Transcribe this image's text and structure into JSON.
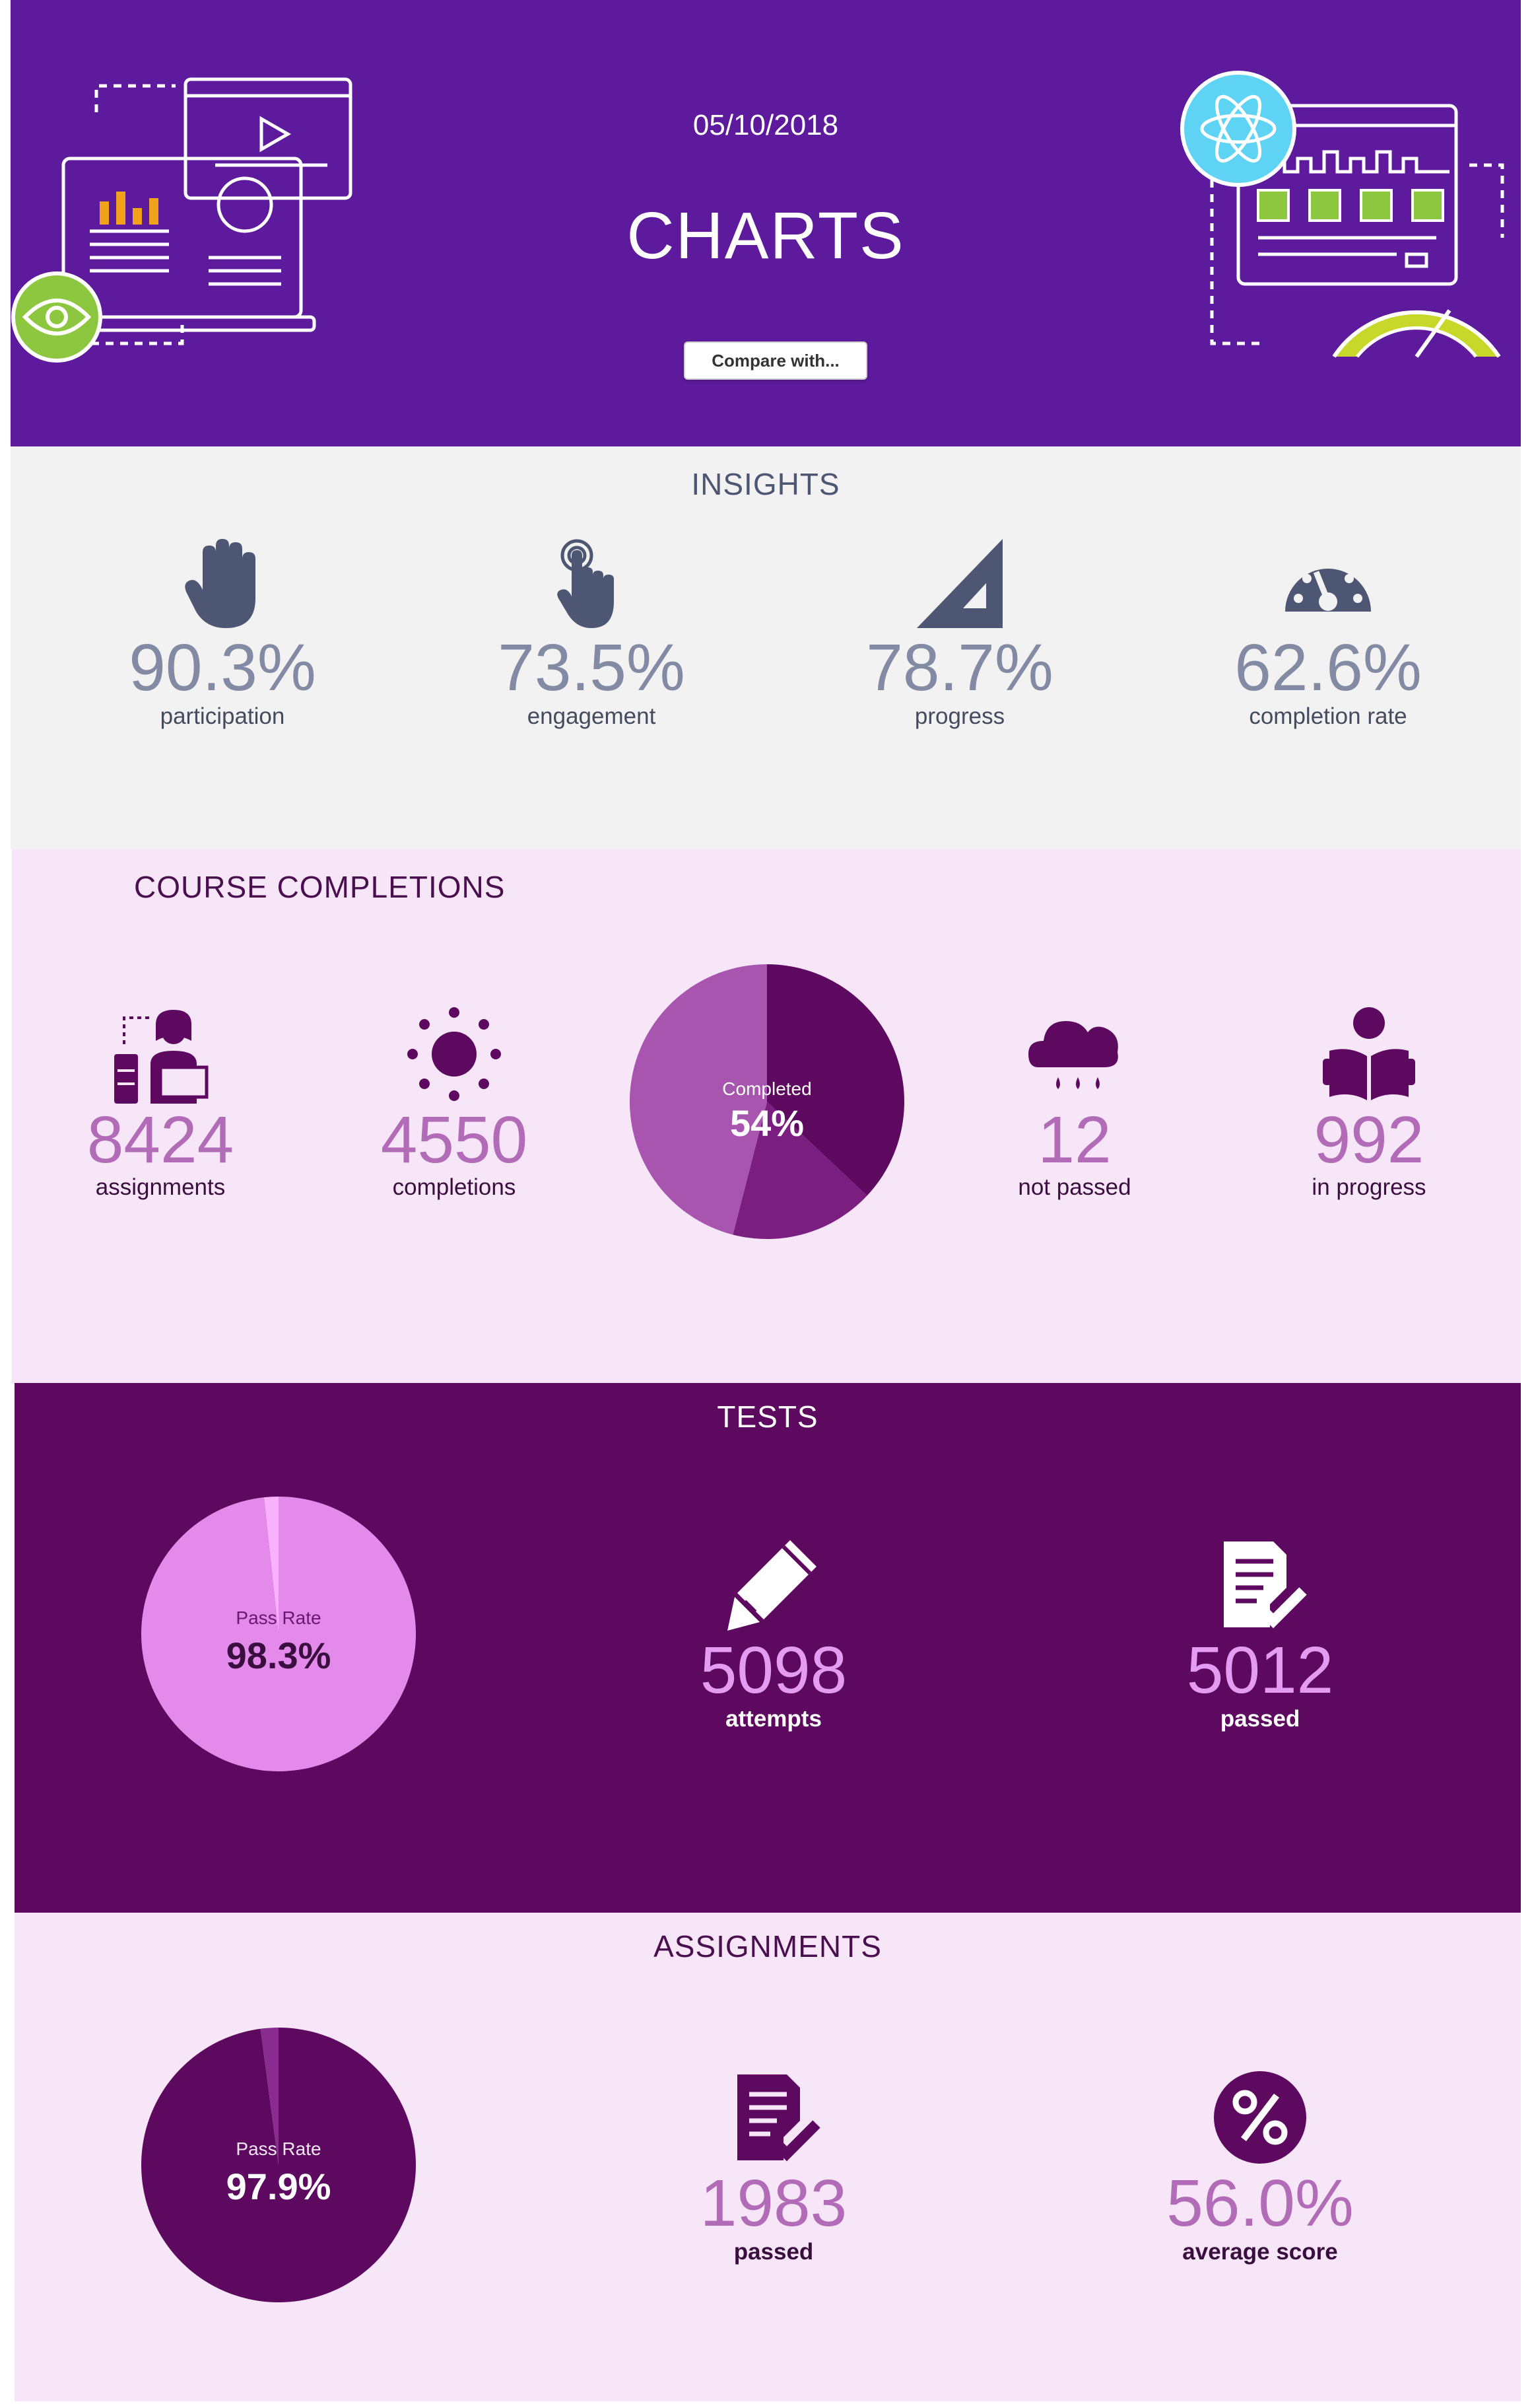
{
  "header": {
    "date": "05/10/2018",
    "title": "CHARTS",
    "compare_label": "Compare with..."
  },
  "insights": {
    "title": "INSIGHTS",
    "items": [
      {
        "icon": "hand-icon",
        "value": "90.3%",
        "label": "participation"
      },
      {
        "icon": "pointer-click-icon",
        "value": "73.5%",
        "label": "engagement"
      },
      {
        "icon": "signal-triangle-icon",
        "value": "78.7%",
        "label": "progress"
      },
      {
        "icon": "speedometer-icon",
        "value": "62.6%",
        "label": "completion rate"
      }
    ]
  },
  "course_completions": {
    "title": "COURSE COMPLETIONS",
    "assignments": {
      "value": "8424",
      "label": "assignments"
    },
    "completions": {
      "value": "4550",
      "label": "completions"
    },
    "pie": {
      "label": "Completed",
      "value": "54%"
    },
    "not_passed": {
      "value": "12",
      "label": "not passed"
    },
    "in_progress": {
      "value": "992",
      "label": "in progress"
    }
  },
  "tests": {
    "title": "TESTS",
    "pie": {
      "label": "Pass Rate",
      "value": "98.3%"
    },
    "attempts": {
      "value": "5098",
      "label": "attempts"
    },
    "passed": {
      "value": "5012",
      "label": "passed"
    }
  },
  "assignments": {
    "title": "ASSIGNMENTS",
    "pie": {
      "label": "Pass Rate",
      "value": "97.9%"
    },
    "passed": {
      "value": "1983",
      "label": "passed"
    },
    "average_score": {
      "value": "56.0%",
      "label": "average score"
    }
  },
  "colors": {
    "header_bg": "#5e1a9c",
    "insights_bg": "#f2f2f2",
    "course_bg": "#f7e6f8",
    "tests_bg": "#5c095f",
    "accent_light": "#e39cf2",
    "accent_mid": "#b26cb7"
  },
  "chart_data": [
    {
      "type": "pie",
      "title": "Completed",
      "values": [
        54,
        46
      ]
    },
    {
      "type": "pie",
      "title": "Pass Rate",
      "values": [
        98.3,
        1.7
      ]
    },
    {
      "type": "pie",
      "title": "Pass Rate",
      "values": [
        97.9,
        2.1
      ]
    }
  ]
}
